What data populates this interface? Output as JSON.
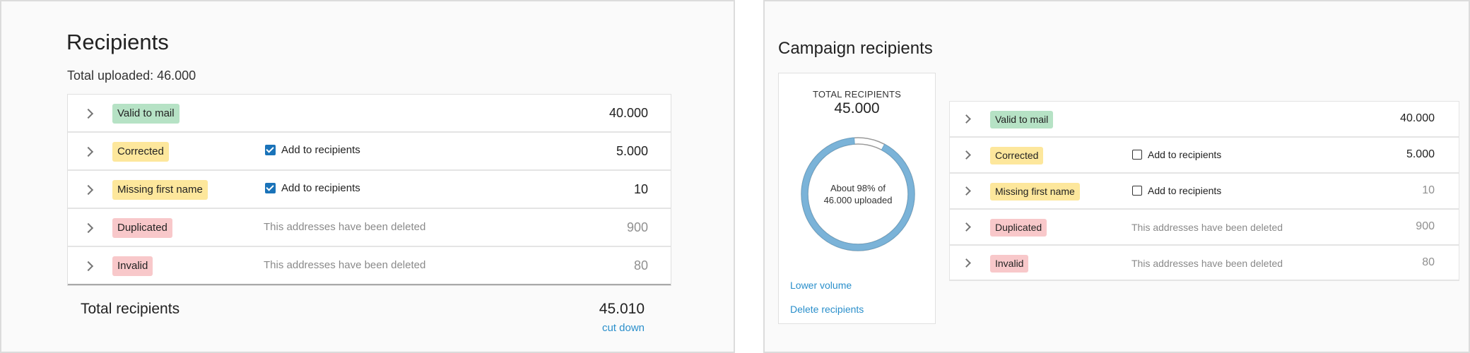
{
  "left": {
    "title": "Recipients",
    "total_uploaded": "Total uploaded: 46.000",
    "rows": [
      {
        "badge": "Valid to mail",
        "value": "40.000"
      },
      {
        "badge": "Corrected",
        "checkbox_label": "Add to recipients",
        "value": "5.000"
      },
      {
        "badge": "Missing first name",
        "checkbox_label": "Add to recipients",
        "value": "10"
      },
      {
        "badge": "Duplicated",
        "note": "This addresses have been deleted",
        "value": "900"
      },
      {
        "badge": "Invalid",
        "note": "This addresses have been deleted",
        "value": "80"
      }
    ],
    "footer": {
      "label": "Total recipients",
      "value": "45.010",
      "link": "cut down"
    }
  },
  "right": {
    "title": "Campaign recipients",
    "card": {
      "label": "TOTAL RECIPIENTS",
      "total": "45.000",
      "donut_line1": "About 98% of",
      "donut_line2": "46.000 uploaded",
      "donut_percent": 98,
      "lower_volume": "Lower volume",
      "delete_recipients": "Delete recipients"
    },
    "rows": [
      {
        "badge": "Valid to mail",
        "value": "40.000"
      },
      {
        "badge": "Corrected",
        "checkbox_label": "Add to recipients",
        "value": "5.000"
      },
      {
        "badge": "Missing first name",
        "checkbox_label": "Add to recipients",
        "value": "10"
      },
      {
        "badge": "Duplicated",
        "note": "This addresses have been deleted",
        "value": "900"
      },
      {
        "badge": "Invalid",
        "note": "This addresses have been deleted",
        "value": "80"
      }
    ]
  },
  "colors": {
    "valid": "#b6e2c5",
    "warning": "#fde79c",
    "error": "#f8c8ca",
    "link": "#2a8fcb",
    "checkbox": "#1a73b9",
    "donut": "#7bb3d8"
  },
  "icons": {
    "expand": "chevron-right-icon",
    "checked": "checkbox-checked-icon",
    "unchecked": "checkbox-empty-icon"
  }
}
